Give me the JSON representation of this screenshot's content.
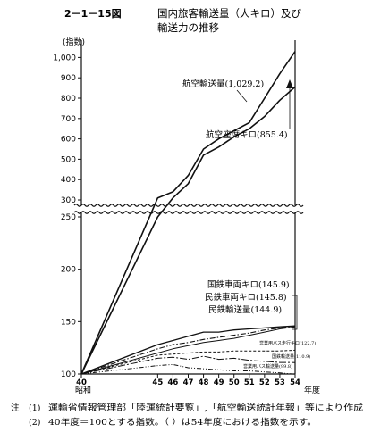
{
  "figure": {
    "number": "2－1－15図",
    "title_line1": "国内旅客輸送量（人キロ）及び",
    "title_line2": "輸送力の推移"
  },
  "notes": {
    "prefix": "注",
    "n1_mark": "(1)",
    "n1_text": "運輸省情報管理部「陸運統計要覧」,「航空輸送統計年報」等により作成",
    "n2_mark": "(2)",
    "n2_text": "40年度＝100とする指数。（ ）は54年度における指数を示す。"
  },
  "chart_data": {
    "type": "line",
    "ylabel": "(指数)",
    "xlabel": "年度",
    "x_start_label": "昭和",
    "categories": [
      "40",
      "45",
      "46",
      "47",
      "48",
      "49",
      "50",
      "51",
      "52",
      "53",
      "54"
    ],
    "y_axis_break": {
      "lower_range": [
        100,
        250
      ],
      "upper_range": [
        300,
        1050
      ]
    },
    "yticks_lower": [
      "100",
      "150",
      "200",
      "250"
    ],
    "yticks_upper": [
      "300",
      "400",
      "500",
      "600",
      "700",
      "800",
      "900",
      "1,000"
    ],
    "grid": false,
    "series": [
      {
        "name": "航空輸送量(1,029.2)",
        "label_size": "large",
        "values": [
          100,
          310,
          340,
          420,
          550,
          600,
          640,
          680,
          800,
          920,
          1029.2
        ]
      },
      {
        "name": "航空座席キロ(855.4)",
        "label_size": "large",
        "values": [
          100,
          250,
          310,
          380,
          520,
          560,
          610,
          650,
          710,
          790,
          855.4
        ]
      },
      {
        "name": "国鉄車両キロ(145.9)",
        "label_size": "large",
        "values": [
          100,
          128,
          132,
          136,
          140,
          140,
          142,
          143,
          144,
          145,
          145.9
        ]
      },
      {
        "name": "民鉄車両キロ(145.8)",
        "label_size": "large",
        "values": [
          100,
          124,
          128,
          130,
          133,
          135,
          137,
          139,
          142,
          144,
          145.8
        ]
      },
      {
        "name": "民鉄輸送量(144.9)",
        "label_size": "large",
        "values": [
          100,
          120,
          124,
          127,
          130,
          132,
          134,
          137,
          140,
          143,
          144.9
        ]
      },
      {
        "name": "営業用バス走行キロ(122.7)",
        "label_size": "small",
        "values": [
          100,
          118,
          119,
          120,
          121,
          121,
          122,
          122,
          122,
          122,
          122.7
        ]
      },
      {
        "name": "国鉄輸送量(110.9)",
        "label_size": "small",
        "values": [
          100,
          115,
          116,
          114,
          117,
          114,
          115,
          113,
          112,
          111,
          110.9
        ]
      },
      {
        "name": "営業用バス輸送量(99.8)",
        "label_size": "small",
        "values": [
          100,
          108,
          109,
          106,
          105,
          104,
          103,
          103,
          102,
          101,
          99.8
        ]
      }
    ]
  }
}
